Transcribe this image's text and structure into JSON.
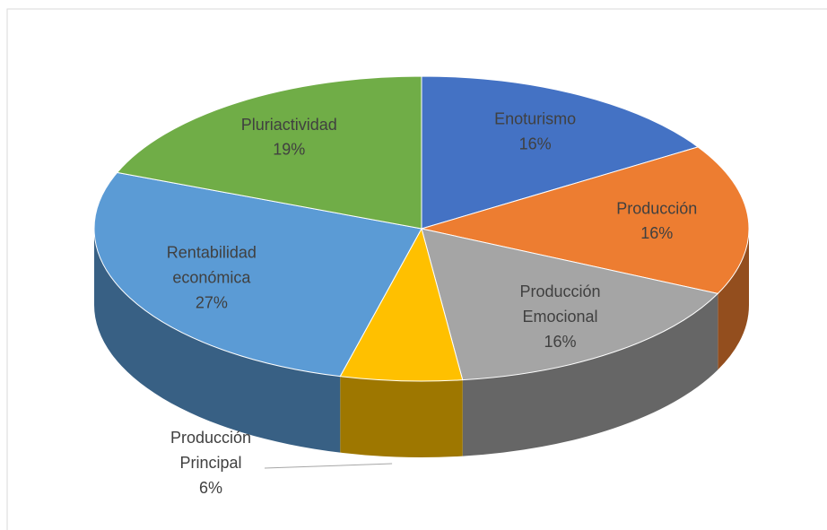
{
  "chart_data": {
    "type": "pie",
    "categories": [
      "Enoturismo",
      "Producción",
      "Producción Emocional",
      "Producción Principal",
      "Rentabilidad económica",
      "Pluriactividad"
    ],
    "values": [
      16,
      16,
      16,
      6,
      27,
      19
    ],
    "value_labels": [
      "16%",
      "16%",
      "16%",
      "6%",
      "27%",
      "19%"
    ],
    "colors": [
      "#4472c4",
      "#ed7d31",
      "#a5a5a5",
      "#ffc000",
      "#5b9bd5",
      "#70ad47"
    ]
  }
}
